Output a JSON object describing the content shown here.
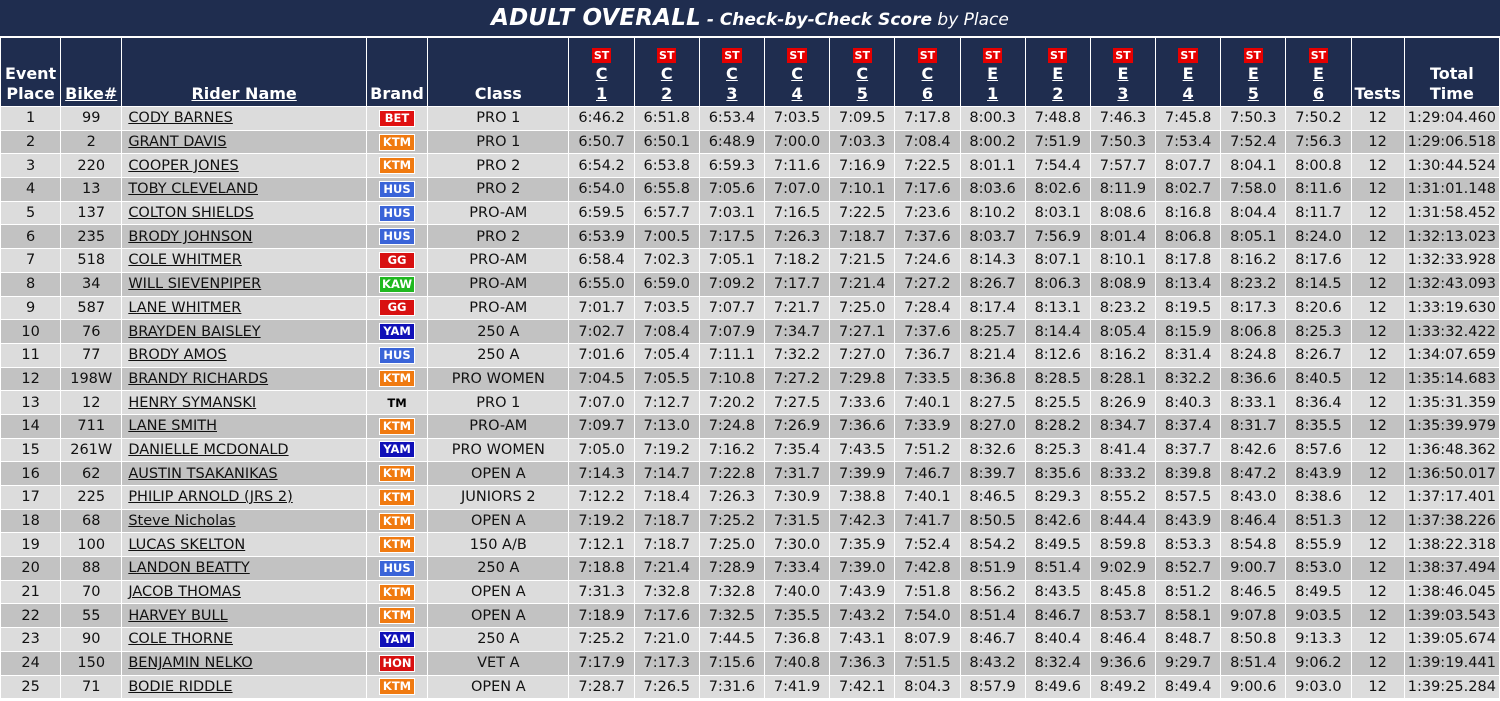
{
  "title": {
    "main": "ADULT OVERALL",
    "sub": " - Check-by-Check Score",
    "by": " by Place"
  },
  "headers": {
    "place_line1": "Event",
    "place_line2": "Place",
    "bike": "Bike#",
    "rider": "Rider Name",
    "brand": "Brand",
    "class": "Class",
    "st_label": "ST",
    "tests": "Tests",
    "total_line1": "Total",
    "total_line2": "Time",
    "checks": [
      {
        "l": "C",
        "n": "1"
      },
      {
        "l": "C",
        "n": "2"
      },
      {
        "l": "C",
        "n": "3"
      },
      {
        "l": "C",
        "n": "4"
      },
      {
        "l": "C",
        "n": "5"
      },
      {
        "l": "C",
        "n": "6"
      },
      {
        "l": "E",
        "n": "1"
      },
      {
        "l": "E",
        "n": "2"
      },
      {
        "l": "E",
        "n": "3"
      },
      {
        "l": "E",
        "n": "4"
      },
      {
        "l": "E",
        "n": "5"
      },
      {
        "l": "E",
        "n": "6"
      }
    ]
  },
  "brand_colors": {
    "BET": "#e01010",
    "KTM": "#f07a10",
    "HUS": "#3a64d8",
    "GG": "#d81010",
    "KAW": "#1fb81f",
    "YAM": "#1010b8",
    "HON": "#d81010",
    "TM": "transparent"
  },
  "rows": [
    {
      "place": "1",
      "bike": "99",
      "name": "CODY BARNES",
      "brand": "BET",
      "class": "PRO 1",
      "scores": [
        "6:46.2",
        "6:51.8",
        "6:53.4",
        "7:03.5",
        "7:09.5",
        "7:17.8",
        "8:00.3",
        "7:48.8",
        "7:46.3",
        "7:45.8",
        "7:50.3",
        "7:50.2"
      ],
      "tests": "12",
      "total": "1:29:04.460"
    },
    {
      "place": "2",
      "bike": "2",
      "name": "GRANT DAVIS",
      "brand": "KTM",
      "class": "PRO 1",
      "scores": [
        "6:50.7",
        "6:50.1",
        "6:48.9",
        "7:00.0",
        "7:03.3",
        "7:08.4",
        "8:00.2",
        "7:51.9",
        "7:50.3",
        "7:53.4",
        "7:52.4",
        "7:56.3"
      ],
      "tests": "12",
      "total": "1:29:06.518"
    },
    {
      "place": "3",
      "bike": "220",
      "name": "COOPER JONES",
      "brand": "KTM",
      "class": "PRO 2",
      "scores": [
        "6:54.2",
        "6:53.8",
        "6:59.3",
        "7:11.6",
        "7:16.9",
        "7:22.5",
        "8:01.1",
        "7:54.4",
        "7:57.7",
        "8:07.7",
        "8:04.1",
        "8:00.8"
      ],
      "tests": "12",
      "total": "1:30:44.524"
    },
    {
      "place": "4",
      "bike": "13",
      "name": "TOBY CLEVELAND",
      "brand": "HUS",
      "class": "PRO 2",
      "scores": [
        "6:54.0",
        "6:55.8",
        "7:05.6",
        "7:07.0",
        "7:10.1",
        "7:17.6",
        "8:03.6",
        "8:02.6",
        "8:11.9",
        "8:02.7",
        "7:58.0",
        "8:11.6"
      ],
      "tests": "12",
      "total": "1:31:01.148"
    },
    {
      "place": "5",
      "bike": "137",
      "name": "COLTON SHIELDS",
      "brand": "HUS",
      "class": "PRO-AM",
      "scores": [
        "6:59.5",
        "6:57.7",
        "7:03.1",
        "7:16.5",
        "7:22.5",
        "7:23.6",
        "8:10.2",
        "8:03.1",
        "8:08.6",
        "8:16.8",
        "8:04.4",
        "8:11.7"
      ],
      "tests": "12",
      "total": "1:31:58.452"
    },
    {
      "place": "6",
      "bike": "235",
      "name": "BRODY JOHNSON",
      "brand": "HUS",
      "class": "PRO 2",
      "scores": [
        "6:53.9",
        "7:00.5",
        "7:17.5",
        "7:26.3",
        "7:18.7",
        "7:37.6",
        "8:03.7",
        "7:56.9",
        "8:01.4",
        "8:06.8",
        "8:05.1",
        "8:24.0"
      ],
      "tests": "12",
      "total": "1:32:13.023"
    },
    {
      "place": "7",
      "bike": "518",
      "name": "COLE WHITMER",
      "brand": "GG",
      "class": "PRO-AM",
      "scores": [
        "6:58.4",
        "7:02.3",
        "7:05.1",
        "7:18.2",
        "7:21.5",
        "7:24.6",
        "8:14.3",
        "8:07.1",
        "8:10.1",
        "8:17.8",
        "8:16.2",
        "8:17.6"
      ],
      "tests": "12",
      "total": "1:32:33.928"
    },
    {
      "place": "8",
      "bike": "34",
      "name": "WILL SIEVENPIPER",
      "brand": "KAW",
      "class": "PRO-AM",
      "scores": [
        "6:55.0",
        "6:59.0",
        "7:09.2",
        "7:17.7",
        "7:21.4",
        "7:27.2",
        "8:26.7",
        "8:06.3",
        "8:08.9",
        "8:13.4",
        "8:23.2",
        "8:14.5"
      ],
      "tests": "12",
      "total": "1:32:43.093"
    },
    {
      "place": "9",
      "bike": "587",
      "name": "LANE WHITMER",
      "brand": "GG",
      "class": "PRO-AM",
      "scores": [
        "7:01.7",
        "7:03.5",
        "7:07.7",
        "7:21.7",
        "7:25.0",
        "7:28.4",
        "8:17.4",
        "8:13.1",
        "8:23.2",
        "8:19.5",
        "8:17.3",
        "8:20.6"
      ],
      "tests": "12",
      "total": "1:33:19.630"
    },
    {
      "place": "10",
      "bike": "76",
      "name": "BRAYDEN BAISLEY",
      "brand": "YAM",
      "class": "250 A",
      "scores": [
        "7:02.7",
        "7:08.4",
        "7:07.9",
        "7:34.7",
        "7:27.1",
        "7:37.6",
        "8:25.7",
        "8:14.4",
        "8:05.4",
        "8:15.9",
        "8:06.8",
        "8:25.3"
      ],
      "tests": "12",
      "total": "1:33:32.422"
    },
    {
      "place": "11",
      "bike": "77",
      "name": "BRODY AMOS",
      "brand": "HUS",
      "class": "250 A",
      "scores": [
        "7:01.6",
        "7:05.4",
        "7:11.1",
        "7:32.2",
        "7:27.0",
        "7:36.7",
        "8:21.4",
        "8:12.6",
        "8:16.2",
        "8:31.4",
        "8:24.8",
        "8:26.7"
      ],
      "tests": "12",
      "total": "1:34:07.659"
    },
    {
      "place": "12",
      "bike": "198W",
      "name": "BRANDY RICHARDS",
      "brand": "KTM",
      "class": "PRO WOMEN",
      "scores": [
        "7:04.5",
        "7:05.5",
        "7:10.8",
        "7:27.2",
        "7:29.8",
        "7:33.5",
        "8:36.8",
        "8:28.5",
        "8:28.1",
        "8:32.2",
        "8:36.6",
        "8:40.5"
      ],
      "tests": "12",
      "total": "1:35:14.683"
    },
    {
      "place": "13",
      "bike": "12",
      "name": "HENRY SYMANSKI",
      "brand": "TM",
      "class": "PRO 1",
      "scores": [
        "7:07.0",
        "7:12.7",
        "7:20.2",
        "7:27.5",
        "7:33.6",
        "7:40.1",
        "8:27.5",
        "8:25.5",
        "8:26.9",
        "8:40.3",
        "8:33.1",
        "8:36.4"
      ],
      "tests": "12",
      "total": "1:35:31.359"
    },
    {
      "place": "14",
      "bike": "711",
      "name": "LANE SMITH",
      "brand": "KTM",
      "class": "PRO-AM",
      "scores": [
        "7:09.7",
        "7:13.0",
        "7:24.8",
        "7:26.9",
        "7:36.6",
        "7:33.9",
        "8:27.0",
        "8:28.2",
        "8:34.7",
        "8:37.4",
        "8:31.7",
        "8:35.5"
      ],
      "tests": "12",
      "total": "1:35:39.979"
    },
    {
      "place": "15",
      "bike": "261W",
      "name": "DANIELLE MCDONALD",
      "brand": "YAM",
      "class": "PRO WOMEN",
      "scores": [
        "7:05.0",
        "7:19.2",
        "7:16.2",
        "7:35.4",
        "7:43.5",
        "7:51.2",
        "8:32.6",
        "8:25.3",
        "8:41.4",
        "8:37.7",
        "8:42.6",
        "8:57.6"
      ],
      "tests": "12",
      "total": "1:36:48.362"
    },
    {
      "place": "16",
      "bike": "62",
      "name": "AUSTIN TSAKANIKAS",
      "brand": "KTM",
      "class": "OPEN A",
      "scores": [
        "7:14.3",
        "7:14.7",
        "7:22.8",
        "7:31.7",
        "7:39.9",
        "7:46.7",
        "8:39.7",
        "8:35.6",
        "8:33.2",
        "8:39.8",
        "8:47.2",
        "8:43.9"
      ],
      "tests": "12",
      "total": "1:36:50.017"
    },
    {
      "place": "17",
      "bike": "225",
      "name": "PHILIP ARNOLD (JRS 2)",
      "brand": "KTM",
      "class": "JUNIORS 2",
      "scores": [
        "7:12.2",
        "7:18.4",
        "7:26.3",
        "7:30.9",
        "7:38.8",
        "7:40.1",
        "8:46.5",
        "8:29.3",
        "8:55.2",
        "8:57.5",
        "8:43.0",
        "8:38.6"
      ],
      "tests": "12",
      "total": "1:37:17.401"
    },
    {
      "place": "18",
      "bike": "68",
      "name": "Steve Nicholas",
      "brand": "KTM",
      "class": "OPEN A",
      "scores": [
        "7:19.2",
        "7:18.7",
        "7:25.2",
        "7:31.5",
        "7:42.3",
        "7:41.7",
        "8:50.5",
        "8:42.6",
        "8:44.4",
        "8:43.9",
        "8:46.4",
        "8:51.3"
      ],
      "tests": "12",
      "total": "1:37:38.226"
    },
    {
      "place": "19",
      "bike": "100",
      "name": "LUCAS SKELTON",
      "brand": "KTM",
      "class": "150 A/B",
      "scores": [
        "7:12.1",
        "7:18.7",
        "7:25.0",
        "7:30.0",
        "7:35.9",
        "7:52.4",
        "8:54.2",
        "8:49.5",
        "8:59.8",
        "8:53.3",
        "8:54.8",
        "8:55.9"
      ],
      "tests": "12",
      "total": "1:38:22.318"
    },
    {
      "place": "20",
      "bike": "88",
      "name": "LANDON BEATTY",
      "brand": "HUS",
      "class": "250 A",
      "scores": [
        "7:18.8",
        "7:21.4",
        "7:28.9",
        "7:33.4",
        "7:39.0",
        "7:42.8",
        "8:51.9",
        "8:51.4",
        "9:02.9",
        "8:52.7",
        "9:00.7",
        "8:53.0"
      ],
      "tests": "12",
      "total": "1:38:37.494"
    },
    {
      "place": "21",
      "bike": "70",
      "name": "JACOB THOMAS",
      "brand": "KTM",
      "class": "OPEN A",
      "scores": [
        "7:31.3",
        "7:32.8",
        "7:32.8",
        "7:40.0",
        "7:43.9",
        "7:51.8",
        "8:56.2",
        "8:43.5",
        "8:45.8",
        "8:51.2",
        "8:46.5",
        "8:49.5"
      ],
      "tests": "12",
      "total": "1:38:46.045"
    },
    {
      "place": "22",
      "bike": "55",
      "name": "HARVEY BULL",
      "brand": "KTM",
      "class": "OPEN A",
      "scores": [
        "7:18.9",
        "7:17.6",
        "7:32.5",
        "7:35.5",
        "7:43.2",
        "7:54.0",
        "8:51.4",
        "8:46.7",
        "8:53.7",
        "8:58.1",
        "9:07.8",
        "9:03.5"
      ],
      "tests": "12",
      "total": "1:39:03.543"
    },
    {
      "place": "23",
      "bike": "90",
      "name": "COLE THORNE",
      "brand": "YAM",
      "class": "250 A",
      "scores": [
        "7:25.2",
        "7:21.0",
        "7:44.5",
        "7:36.8",
        "7:43.1",
        "8:07.9",
        "8:46.7",
        "8:40.4",
        "8:46.4",
        "8:48.7",
        "8:50.8",
        "9:13.3"
      ],
      "tests": "12",
      "total": "1:39:05.674"
    },
    {
      "place": "24",
      "bike": "150",
      "name": "BENJAMIN NELKO",
      "brand": "HON",
      "class": "VET A",
      "scores": [
        "7:17.9",
        "7:17.3",
        "7:15.6",
        "7:40.8",
        "7:36.3",
        "7:51.5",
        "8:43.2",
        "8:32.4",
        "9:36.6",
        "9:29.7",
        "8:51.4",
        "9:06.2"
      ],
      "tests": "12",
      "total": "1:39:19.441"
    },
    {
      "place": "25",
      "bike": "71",
      "name": "BODIE RIDDLE",
      "brand": "KTM",
      "class": "OPEN A",
      "scores": [
        "7:28.7",
        "7:26.5",
        "7:31.6",
        "7:41.9",
        "7:42.1",
        "8:04.3",
        "8:57.9",
        "8:49.6",
        "8:49.2",
        "8:49.4",
        "9:00.6",
        "9:03.0"
      ],
      "tests": "12",
      "total": "1:39:25.284"
    }
  ]
}
